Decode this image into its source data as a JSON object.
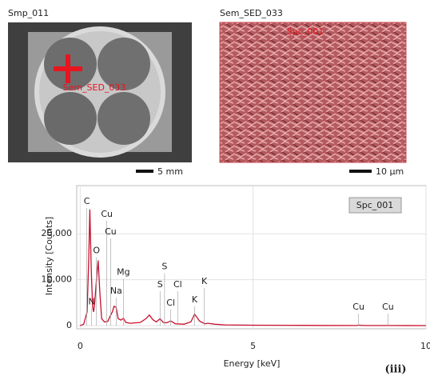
{
  "panels": [
    {
      "title": "Smp_011",
      "overlay": "Sem_SED_033",
      "scale": "5 mm"
    },
    {
      "title": "Sem_SED_033",
      "overlay": "Spc_001",
      "scale": "10 µm"
    }
  ],
  "chart_data": {
    "type": "line",
    "x_label": "Energy [keV]",
    "y_label": "Intensity [Counts]",
    "series": [
      {
        "name": "Spc_001",
        "color": "#c8102e",
        "x": [
          0,
          0.1,
          0.2,
          0.25,
          0.28,
          0.32,
          0.36,
          0.39,
          0.42,
          0.47,
          0.52,
          0.57,
          0.62,
          0.7,
          0.8,
          0.85,
          0.93,
          0.98,
          1.04,
          1.1,
          1.18,
          1.25,
          1.32,
          1.45,
          1.74,
          1.9,
          2.0,
          2.1,
          2.2,
          2.31,
          2.4,
          2.5,
          2.62,
          2.75,
          3.0,
          3.2,
          3.31,
          3.45,
          3.6,
          3.7,
          3.9,
          4.2,
          5,
          6,
          7,
          8,
          8.05,
          8.2,
          9,
          10
        ],
        "values": [
          0,
          300,
          3000,
          15000,
          25300,
          12000,
          4000,
          3000,
          5000,
          10000,
          14200,
          7000,
          1500,
          800,
          900,
          1800,
          3000,
          4200,
          4000,
          1500,
          1200,
          1600,
          700,
          500,
          700,
          1500,
          2300,
          1300,
          800,
          1500,
          700,
          600,
          1000,
          400,
          300,
          800,
          2500,
          1000,
          400,
          500,
          300,
          150,
          80,
          60,
          40,
          20,
          100,
          20,
          10,
          0
        ]
      }
    ],
    "xlim": [
      -0.1,
      10
    ],
    "ylim": [
      -700,
      30500
    ],
    "xticks": [
      0,
      5,
      10
    ],
    "yticks": [
      0,
      {
        "value": 10000,
        "label": "10,000"
      },
      {
        "value": 20000,
        "label": "20,000"
      }
    ],
    "grid": true,
    "annotations": [
      {
        "text": "C",
        "x": 0.19,
        "y": 27000
      },
      {
        "text": "Cu",
        "x": 0.77,
        "y": 24200
      },
      {
        "text": "Cu",
        "x": 0.88,
        "y": 20400
      },
      {
        "text": "O",
        "x": 0.47,
        "y": 16300
      },
      {
        "text": "Mg",
        "x": 1.25,
        "y": 11600
      },
      {
        "text": "N",
        "x": 0.33,
        "y": 5100
      },
      {
        "text": "Na",
        "x": 1.04,
        "y": 7500
      },
      {
        "text": "S",
        "x": 2.44,
        "y": 12800
      },
      {
        "text": "S",
        "x": 2.31,
        "y": 8900
      },
      {
        "text": "Cl",
        "x": 2.82,
        "y": 8900
      },
      {
        "text": "Cl",
        "x": 2.62,
        "y": 4900
      },
      {
        "text": "K",
        "x": 3.59,
        "y": 9600
      },
      {
        "text": "K",
        "x": 3.31,
        "y": 5600
      },
      {
        "text": "Cu",
        "x": 8.05,
        "y": 4000
      },
      {
        "text": "Cu",
        "x": 8.9,
        "y": 4000
      }
    ]
  },
  "figure_label": "(iii)"
}
